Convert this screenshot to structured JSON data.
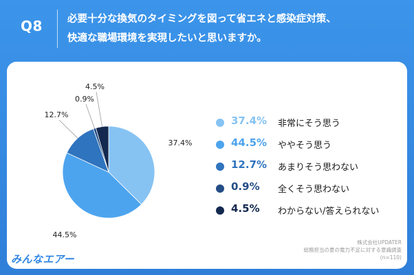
{
  "header": {
    "question_number": "Q8",
    "title_line1": "必要十分な換気のタイミングを図って省エネと感染症対策、",
    "title_line2": "快適な職場環境を実現したいと思いますか。"
  },
  "colors": {
    "background": "#3a8ee6",
    "panel": "#ffffff",
    "slice_1": "#86c3f3",
    "slice_2": "#4da4ee",
    "slice_3": "#2f74be",
    "slice_4": "#244d86",
    "slice_5": "#14294f"
  },
  "chart_data": {
    "type": "pie",
    "categories": [
      "非常にそう思う",
      "ややそう思う",
      "あまりそう思わない",
      "全くそう思わない",
      "わからない/答えられない"
    ],
    "values": [
      37.4,
      44.5,
      12.7,
      0.9,
      4.5
    ],
    "data_labels": [
      "37.4%",
      "44.5%",
      "12.7%",
      "0.9%",
      "4.5%"
    ],
    "legend_placement": "right"
  },
  "legend": [
    {
      "pct": "37.4%",
      "label": "非常にそう思う"
    },
    {
      "pct": "44.5%",
      "label": "ややそう思う"
    },
    {
      "pct": "12.7%",
      "label": "あまりそう思わない"
    },
    {
      "pct": "0.9%",
      "label": "全くそう思わない"
    },
    {
      "pct": "4.5%",
      "label": "わからない/答えられない"
    }
  ],
  "footer": {
    "logo": "みんなエアー",
    "source_line1": "株式会社UPDATER",
    "source_line2": "総務担当の夏の電力不足に対する意識調査",
    "source_line3": "(n=110)"
  }
}
